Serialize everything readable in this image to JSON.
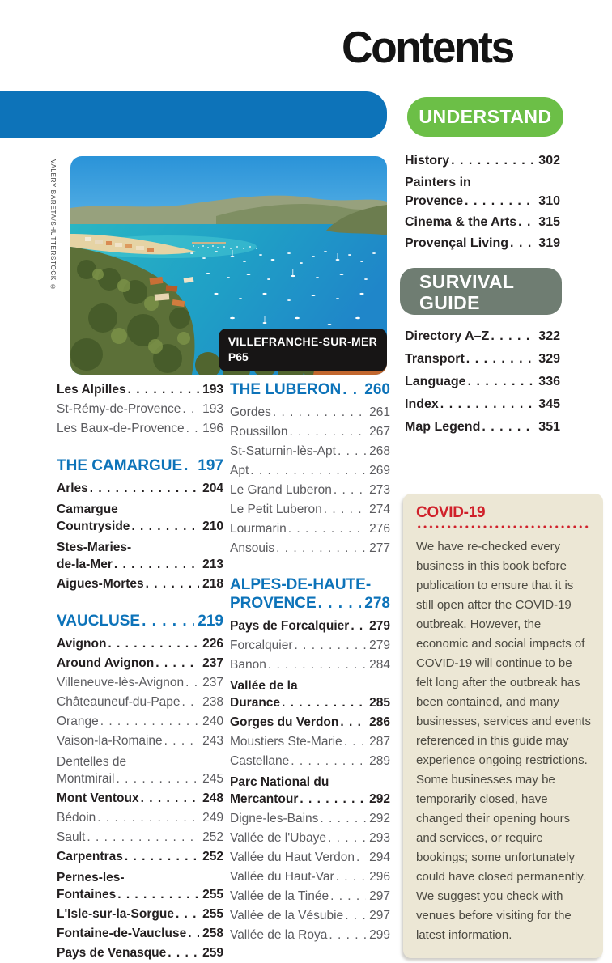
{
  "page_title": "Contents",
  "colors": {
    "blue": "#0d73b9",
    "green": "#6cbf47",
    "sage": "#6f7d72",
    "red": "#d0202a",
    "beige": "#ece7d5"
  },
  "photo": {
    "credit": "VALERY BARETA/SHUTTERSTOCK ©",
    "caption_title": "VILLEFRANCHE-SUR-MER",
    "caption_page": "P65"
  },
  "left_column": {
    "sections": [
      {
        "items": [
          {
            "label": "Les Alpilles",
            "page": "193",
            "bold": true
          },
          {
            "label": "St-Rémy-de-Provence",
            "page": "193",
            "bold": false
          },
          {
            "label": "Les Baux-de-Provence",
            "page": "196",
            "bold": false
          }
        ]
      },
      {
        "header": {
          "label": "THE CAMARGUE",
          "page": "197"
        },
        "items": [
          {
            "label": "Arles",
            "page": "204",
            "bold": true
          },
          {
            "pre": "Camargue",
            "label": "Countryside",
            "page": "210",
            "bold": true
          },
          {
            "pre": "Stes-Maries-",
            "label": "de-la-Mer",
            "page": "213",
            "bold": true
          },
          {
            "label": "Aigues-Mortes",
            "page": "218",
            "bold": true
          }
        ]
      },
      {
        "header": {
          "label": "VAUCLUSE",
          "page": "219"
        },
        "items": [
          {
            "label": "Avignon",
            "page": "226",
            "bold": true
          },
          {
            "label": "Around Avignon",
            "page": "237",
            "bold": true
          },
          {
            "label": "Villeneuve-lès-Avignon",
            "page": "237",
            "bold": false
          },
          {
            "label": "Châteauneuf-du-Pape",
            "page": "238",
            "bold": false
          },
          {
            "label": "Orange",
            "page": "240",
            "bold": false
          },
          {
            "label": "Vaison-la-Romaine",
            "page": "243",
            "bold": false
          },
          {
            "pre": "Dentelles de",
            "label": "Montmirail",
            "page": "245",
            "bold": false
          },
          {
            "label": "Mont Ventoux",
            "page": "248",
            "bold": true
          },
          {
            "label": "Bédoin",
            "page": "249",
            "bold": false
          },
          {
            "label": "Sault",
            "page": "252",
            "bold": false
          },
          {
            "label": "Carpentras",
            "page": "252",
            "bold": true
          },
          {
            "pre": "Pernes-les-",
            "label": "Fontaines",
            "page": "255",
            "bold": true
          },
          {
            "label": "L'Isle-sur-la-Sorgue",
            "page": "255",
            "bold": true
          },
          {
            "label": "Fontaine-de-Vaucluse",
            "page": "258",
            "bold": true
          },
          {
            "label": "Pays de Venasque",
            "page": "259",
            "bold": true
          }
        ]
      }
    ]
  },
  "middle_column": {
    "sections": [
      {
        "header": {
          "label": "THE LUBERON",
          "page": "260"
        },
        "items": [
          {
            "label": "Gordes",
            "page": "261",
            "bold": false
          },
          {
            "label": "Roussillon",
            "page": "267",
            "bold": false
          },
          {
            "label": "St-Saturnin-lès-Apt",
            "page": "268",
            "bold": false
          },
          {
            "label": "Apt",
            "page": "269",
            "bold": false
          },
          {
            "label": "Le Grand Luberon",
            "page": "273",
            "bold": false
          },
          {
            "label": "Le Petit Luberon",
            "page": "274",
            "bold": false
          },
          {
            "label": "Lourmarin",
            "page": "276",
            "bold": false
          },
          {
            "label": "Ansouis",
            "page": "277",
            "bold": false
          }
        ]
      },
      {
        "header": {
          "pre": "ALPES-DE-HAUTE-",
          "label": "PROVENCE",
          "page": "278"
        },
        "items": [
          {
            "label": "Pays de Forcalquier",
            "page": "279",
            "bold": true
          },
          {
            "label": "Forcalquier",
            "page": "279",
            "bold": false
          },
          {
            "label": "Banon",
            "page": "284",
            "bold": false
          },
          {
            "pre": "Vallée de la",
            "label": "Durance",
            "page": "285",
            "bold": true
          },
          {
            "label": "Gorges du Verdon",
            "page": "286",
            "bold": true
          },
          {
            "label": "Moustiers Ste-Marie",
            "page": "287",
            "bold": false
          },
          {
            "label": "Castellane",
            "page": "289",
            "bold": false
          },
          {
            "pre": "Parc National du",
            "label": "Mercantour",
            "page": "292",
            "bold": true
          },
          {
            "label": "Digne-les-Bains",
            "page": "292",
            "bold": false
          },
          {
            "label": "Vallée de l'Ubaye",
            "page": "293",
            "bold": false
          },
          {
            "label": "Vallée du Haut Verdon",
            "page": "294",
            "bold": false
          },
          {
            "label": "Vallée du Haut-Var",
            "page": "296",
            "bold": false
          },
          {
            "label": "Vallée de la Tinée",
            "page": "297",
            "bold": false
          },
          {
            "label": "Vallée de la Vésubie",
            "page": "297",
            "bold": false
          },
          {
            "label": "Vallée de la Roya",
            "page": "299",
            "bold": false
          }
        ]
      }
    ]
  },
  "right_column": {
    "understand": {
      "badge": "UNDERSTAND",
      "sections": [
        {
          "items": [
            {
              "label": "History",
              "page": "302",
              "bold": true
            },
            {
              "pre": "Painters in",
              "label": "Provence",
              "page": "310",
              "bold": true
            },
            {
              "label": "Cinema & the Arts",
              "page": "315",
              "bold": true
            },
            {
              "label": "Provençal Living",
              "page": "319",
              "bold": true
            }
          ]
        }
      ]
    },
    "survival": {
      "badge_line1": "SURVIVAL",
      "badge_line2": "GUIDE",
      "sections": [
        {
          "items": [
            {
              "label": "Directory A–Z",
              "page": "322",
              "bold": true
            },
            {
              "label": "Transport",
              "page": "329",
              "bold": true
            },
            {
              "label": "Language",
              "page": "336",
              "bold": true
            },
            {
              "label": "Index",
              "page": "345",
              "bold": true
            },
            {
              "label": "Map Legend",
              "page": "351",
              "bold": true
            }
          ]
        }
      ]
    },
    "covid": {
      "title": "COVID-19",
      "body": "We have re-checked every business in this book before publication to ensure that it is still open after the COVID-19 outbreak. However, the economic and social impacts of COVID-19 will continue to be felt long after the outbreak has been contained, and many businesses, services and events referenced in this guide may experience ongoing restrictions. Some businesses may be temporarily closed, have changed their opening hours and services, or require bookings; some unfortunately could have closed permanently. We suggest you check with venues before visiting for the latest information."
    }
  }
}
